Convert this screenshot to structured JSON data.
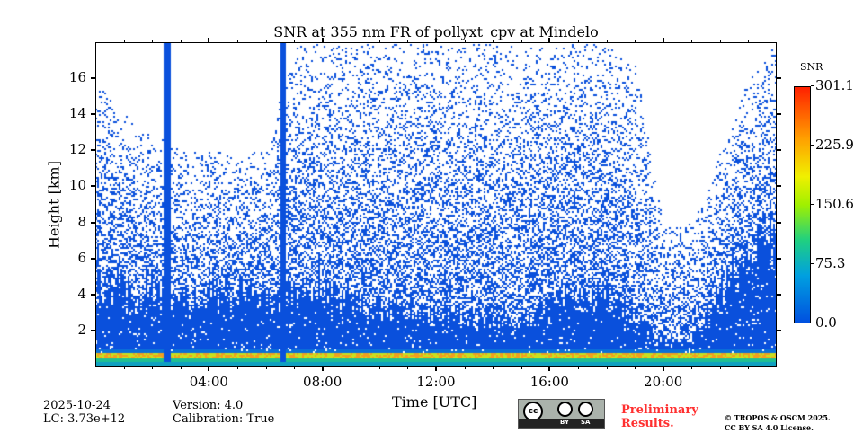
{
  "chart_data": {
    "type": "heatmap",
    "title": "SNR at 355 nm FR of pollyxt_cpv at Mindelo",
    "xlabel": "Time [UTC]",
    "ylabel": "Height [km]",
    "xlim": [
      0,
      24
    ],
    "ylim": [
      0,
      18
    ],
    "xticks": [
      "04:00",
      "08:00",
      "12:00",
      "16:00",
      "20:00"
    ],
    "xtick_values": [
      4,
      8,
      12,
      16,
      20
    ],
    "yticks": [
      "2",
      "4",
      "6",
      "8",
      "10",
      "12",
      "14",
      "16"
    ],
    "ytick_values": [
      2,
      4,
      6,
      8,
      10,
      12,
      14,
      16
    ],
    "colorbar": {
      "label": "SNR",
      "ticks": [
        "0.0",
        "75.3",
        "150.6",
        "225.9",
        "301.1"
      ],
      "range": [
        0,
        301.1
      ]
    },
    "hours": [
      0,
      1,
      2,
      3,
      4,
      5,
      6,
      7,
      8,
      9,
      10,
      11,
      12,
      13,
      14,
      15,
      16,
      17,
      18,
      19,
      20,
      21,
      22,
      23,
      24
    ],
    "dense_signal_top_km": [
      6,
      5,
      5,
      4,
      5,
      5,
      4,
      5,
      5,
      4,
      3.8,
      3.5,
      3.5,
      3.2,
      3,
      2.8,
      4,
      4.5,
      4.5,
      3,
      1.5,
      1.5,
      5,
      7,
      9
    ],
    "sparse_signal_top_km": [
      16,
      14,
      13,
      12,
      12,
      12,
      12,
      18,
      18,
      18,
      18,
      18,
      18,
      18,
      18,
      18,
      18,
      18,
      18,
      17,
      8,
      8,
      12,
      16,
      18
    ],
    "blue_columns_hours": [
      2.5,
      6.6
    ],
    "aerosol_layer_km": 0.6
  },
  "footer": {
    "date": "2025-10-24",
    "lc": "LC: 3.73e+12",
    "version": "Version: 4.0",
    "calibration": "Calibration: True",
    "preliminary": "Preliminary",
    "results": "Results.",
    "copyright": "© TROPOS & OSCM 2025.",
    "license": "CC BY SA 4.0 License.",
    "cc_logo": "cc",
    "by": "BY",
    "sa": "SA"
  }
}
